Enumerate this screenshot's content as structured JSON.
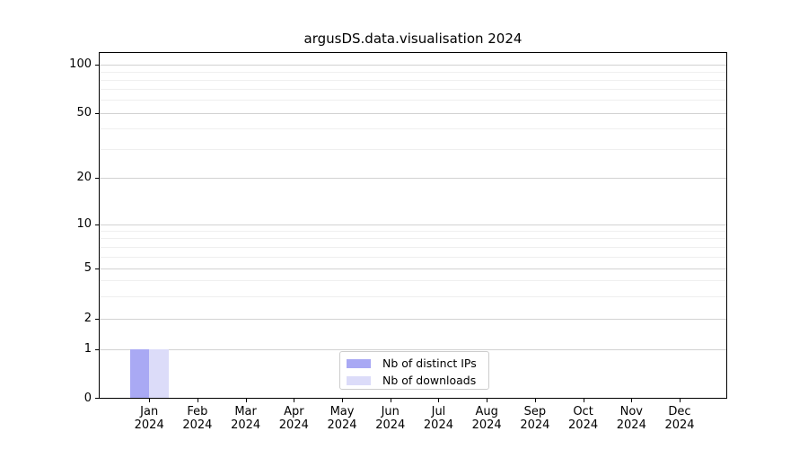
{
  "chart_data": {
    "type": "bar",
    "title": "argusDS.data.visualisation 2024",
    "categories": [
      "Jan",
      "Feb",
      "Mar",
      "Apr",
      "May",
      "Jun",
      "Jul",
      "Aug",
      "Sep",
      "Oct",
      "Nov",
      "Dec"
    ],
    "category_year": "2024",
    "series": [
      {
        "name": "Nb of distinct IPs",
        "color": "#a9a9f4",
        "values": [
          1,
          0,
          0,
          0,
          0,
          0,
          0,
          0,
          0,
          0,
          0,
          0
        ]
      },
      {
        "name": "Nb of downloads",
        "color": "#dcdcf9",
        "values": [
          1,
          0,
          0,
          0,
          0,
          0,
          0,
          0,
          0,
          0,
          0,
          0
        ]
      }
    ],
    "yaxis": {
      "scale": "symlog",
      "ticks": [
        0,
        1,
        2,
        5,
        10,
        20,
        50,
        100
      ],
      "minor_gridlines": [
        3,
        4,
        6,
        7,
        8,
        9,
        30,
        40,
        60,
        70,
        80,
        90
      ],
      "ylim": [
        0,
        118
      ]
    },
    "xlabel": "",
    "ylabel": "",
    "legend": {
      "position": "lower center"
    },
    "grid": true,
    "colors": {
      "major_grid": "#d2d2d2",
      "minor_grid": "#efefef",
      "axis": "#000000",
      "legend_border": "#cccccc",
      "background": "#ffffff"
    }
  }
}
